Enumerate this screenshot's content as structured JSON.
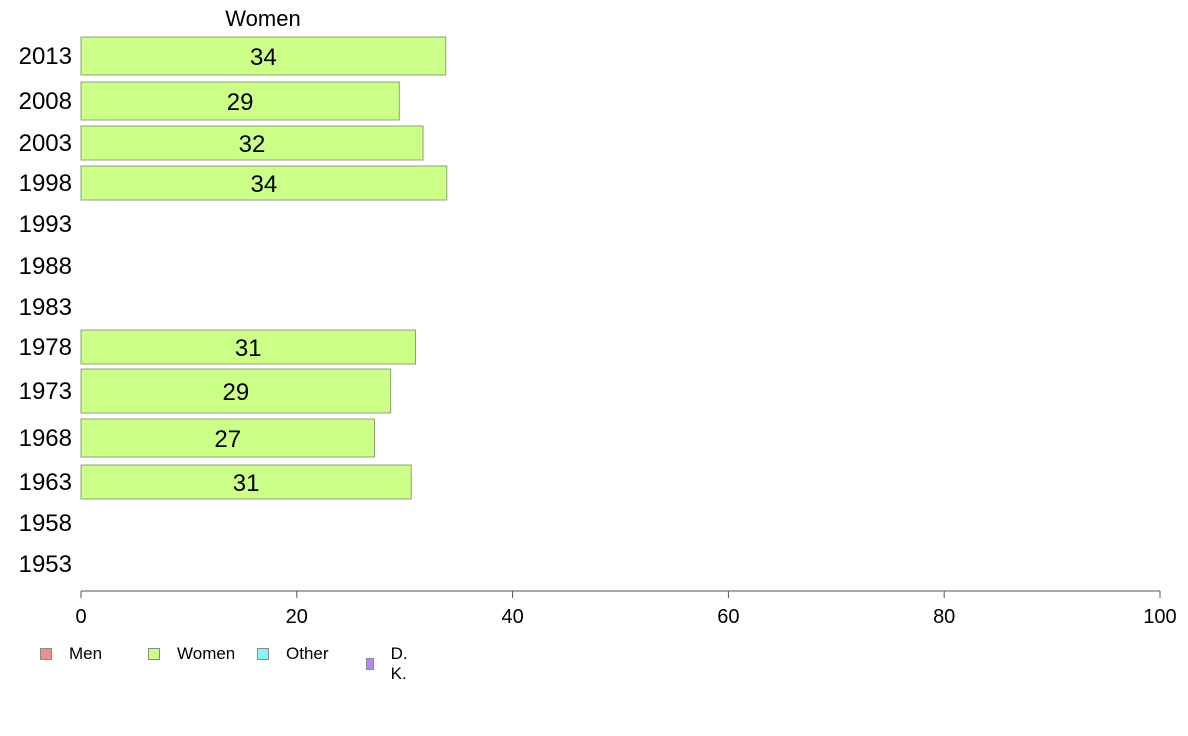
{
  "chart_data": {
    "type": "bar",
    "orientation": "horizontal",
    "title": "Women",
    "categories": [
      "2013",
      "2008",
      "2003",
      "1998",
      "1993",
      "1988",
      "1983",
      "1978",
      "1973",
      "1968",
      "1963",
      "1958",
      "1953"
    ],
    "series": [
      {
        "name": "Women",
        "color": "#ccff88",
        "values": [
          34,
          29,
          32,
          34,
          null,
          null,
          null,
          31,
          29,
          27,
          31,
          null,
          null
        ],
        "plotted": [
          33.8,
          29.5,
          31.7,
          33.9,
          null,
          null,
          null,
          31.0,
          28.7,
          27.2,
          30.6,
          null,
          null
        ]
      }
    ],
    "xlim": [
      0,
      100
    ],
    "xticks": [
      "0",
      "20",
      "40",
      "60",
      "80",
      "100"
    ],
    "grid": false,
    "legend_position": "bottom-left"
  },
  "legend": {
    "items": [
      {
        "label": "Men",
        "color": "#f28e8e"
      },
      {
        "label": "Women",
        "color": "#ccff88"
      },
      {
        "label": "Other",
        "color": "#88f5f2"
      },
      {
        "label": "D. K.",
        "color": "#b488f5"
      }
    ]
  }
}
